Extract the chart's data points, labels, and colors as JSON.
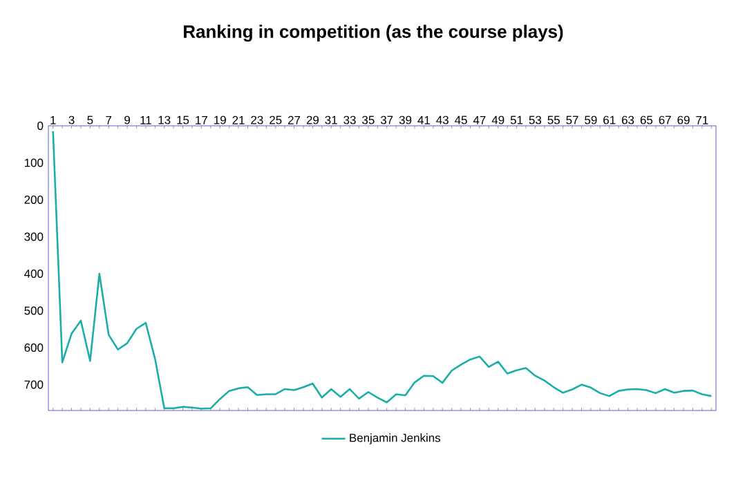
{
  "chart_data": {
    "type": "line",
    "title": "Ranking in competition (as the course plays)",
    "categories": [
      "1",
      null,
      "3",
      null,
      "5",
      null,
      "7",
      null,
      "9",
      null,
      "11",
      null,
      "13",
      null,
      "15",
      null,
      "17",
      null,
      "19",
      null,
      "21",
      null,
      "23",
      null,
      "25",
      null,
      "27",
      null,
      "29",
      null,
      "31",
      null,
      "33",
      null,
      "35",
      null,
      "37",
      null,
      "39",
      null,
      "41",
      null,
      "43",
      null,
      "45",
      null,
      "47",
      null,
      "49",
      null,
      "51",
      null,
      "53",
      null,
      "55",
      null,
      "57",
      null,
      "59",
      null,
      "61",
      null,
      "63",
      null,
      "65",
      null,
      "67",
      null,
      "69",
      null,
      "71",
      null
    ],
    "series": [
      {
        "name": "Benjamin Jenkins",
        "color": "#1aaea6",
        "values": [
          15,
          640,
          562,
          527,
          636,
          400,
          565,
          605,
          588,
          549,
          533,
          630,
          764,
          764,
          760,
          762,
          765,
          764,
          739,
          717,
          710,
          707,
          728,
          726,
          726,
          712,
          715,
          707,
          697,
          735,
          712,
          733,
          712,
          738,
          720,
          735,
          748,
          726,
          729,
          694,
          676,
          677,
          695,
          662,
          646,
          632,
          624,
          652,
          638,
          670,
          661,
          655,
          676,
          689,
          707,
          722,
          713,
          700,
          708,
          723,
          731,
          717,
          713,
          712,
          715,
          723,
          712,
          722,
          717,
          716,
          726,
          731
        ]
      }
    ],
    "ylim": [
      770,
      0
    ],
    "yticks": [
      0,
      100,
      200,
      300,
      400,
      500,
      600,
      700
    ],
    "grid": false,
    "legend": "bottom",
    "marker": "none",
    "line_style": "solid"
  }
}
